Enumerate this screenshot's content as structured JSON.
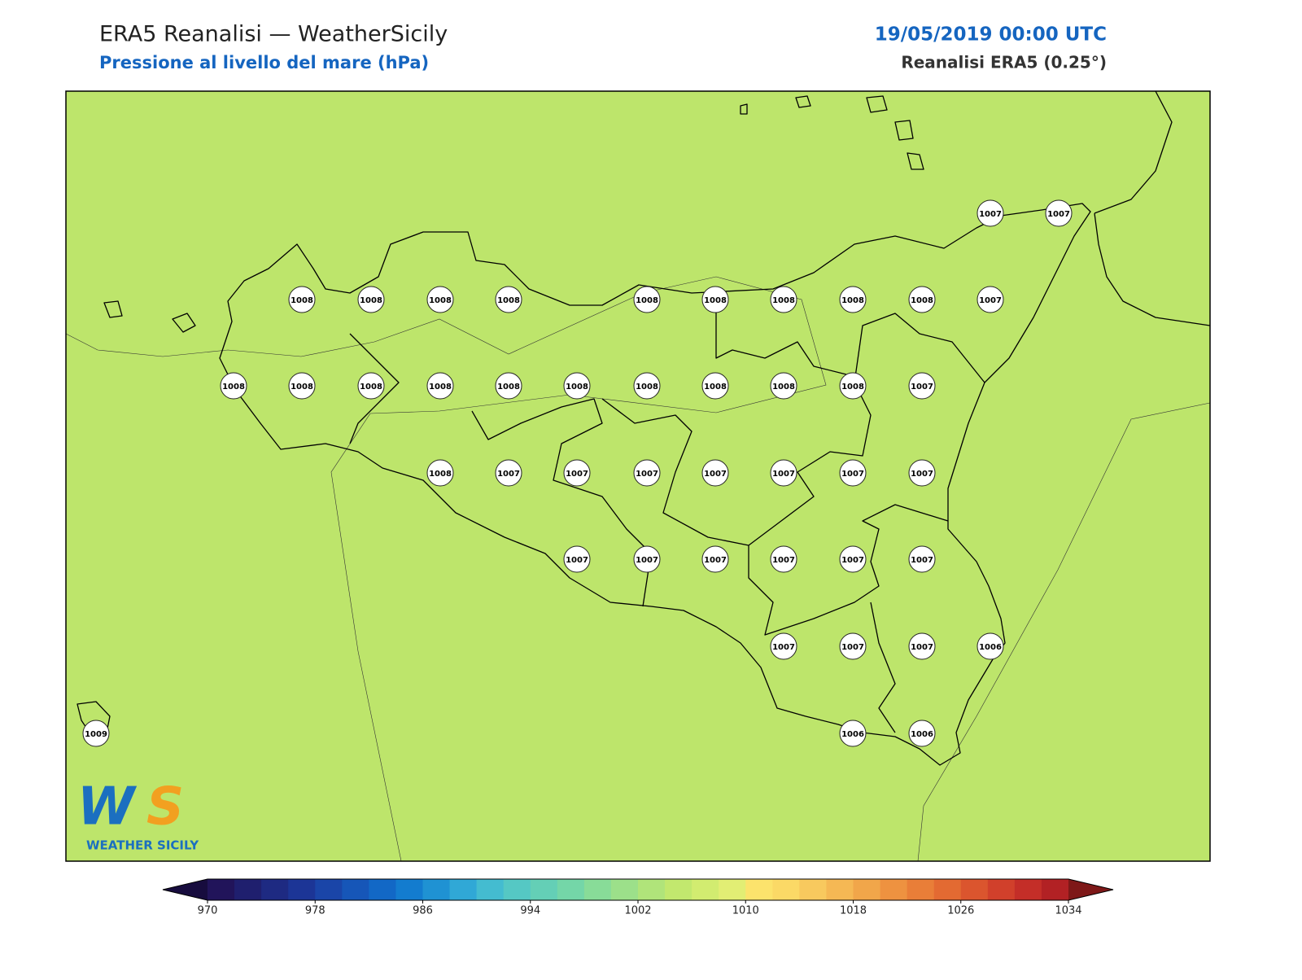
{
  "header": {
    "title": "ERA5 Reanalisi — WeatherSicily",
    "subtitle": "Pressione al livello del mare (hPa)",
    "date": "19/05/2019 00:00 UTC",
    "source": "Reanalisi ERA5 (0.25°)"
  },
  "stations": [
    1007,
    1007,
    1008,
    1008,
    1008,
    1008,
    1008,
    1008,
    1008,
    1008,
    1008,
    1007,
    1008,
    1008,
    1008,
    1008,
    1008,
    1008,
    1008,
    1008,
    1008,
    1008,
    1007,
    1008,
    1007,
    1007,
    1007,
    1007,
    1007,
    1007,
    1007,
    1007,
    1007,
    1007,
    1007,
    1007,
    1007,
    1007,
    1007,
    1007,
    1006,
    1009,
    1006,
    1006
  ],
  "colorbar": {
    "ticks": [
      970,
      978,
      986,
      994,
      1002,
      1010,
      1018,
      1026,
      1034
    ],
    "colors": [
      "#21145a",
      "#1f1f6e",
      "#1e2a82",
      "#1c3596",
      "#1a45a8",
      "#1656b8",
      "#1268c6",
      "#137ccf",
      "#1f92d3",
      "#30a8d6",
      "#44bcd0",
      "#55c8c4",
      "#64cfb6",
      "#74d6a8",
      "#88dc98",
      "#9ce08a",
      "#b0e47a",
      "#c2e86e",
      "#d2ec70",
      "#e2ee74",
      "#fce36c",
      "#fbd966",
      "#f8c95e",
      "#f5b854",
      "#f1a64a",
      "#ee9240",
      "#e97e38",
      "#e36a32",
      "#db552e",
      "#d1402b",
      "#c42e28",
      "#b22124"
    ],
    "under_color": "#170c3e",
    "over_color": "#7e1818"
  },
  "logo": {
    "text": "WEATHER SICILY"
  }
}
